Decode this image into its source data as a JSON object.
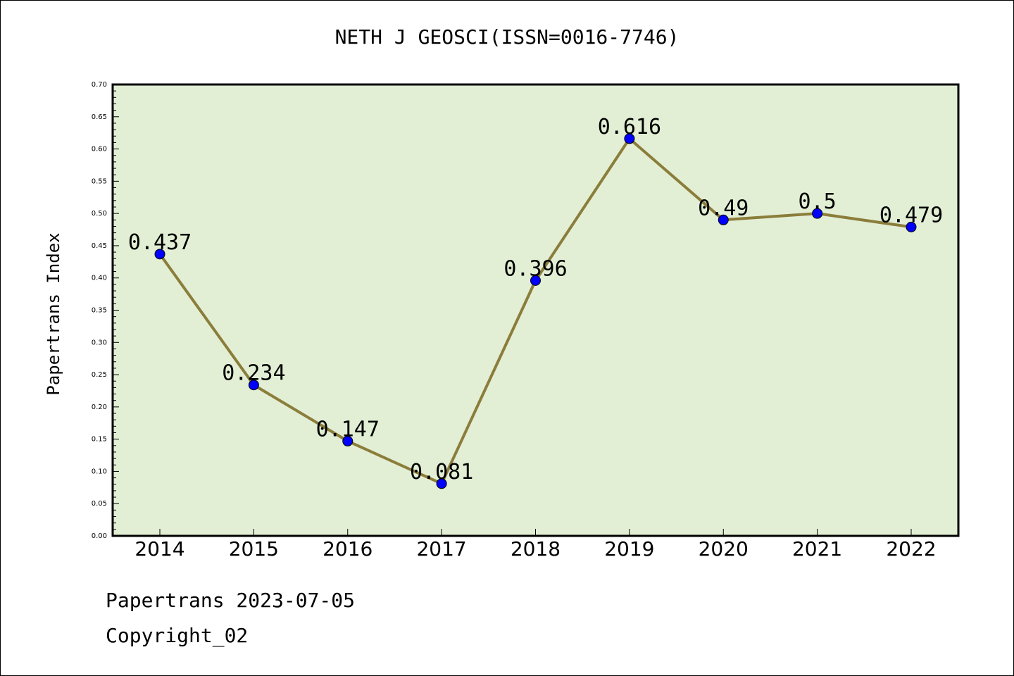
{
  "chart_data": {
    "type": "line",
    "title": "NETH J GEOSCI(ISSN=0016-7746)",
    "xlabel": "",
    "ylabel": "Papertrans Index",
    "categories": [
      "2014",
      "2015",
      "2016",
      "2017",
      "2018",
      "2019",
      "2020",
      "2021",
      "2022"
    ],
    "series": [
      {
        "values": [
          0.437,
          0.234,
          0.147,
          0.081,
          0.396,
          0.616,
          0.49,
          0.5,
          0.479
        ],
        "labels": [
          "0.437",
          "0.234",
          "0.147",
          "0.081",
          "0.396",
          "0.616",
          "0.49",
          "0.5",
          "0.479"
        ],
        "line_color": "#8b7d3a",
        "marker_color": "#0000ff"
      }
    ],
    "ylim": [
      0,
      0.7
    ],
    "yticks": [
      "0.00",
      "0.05",
      "0.10",
      "0.15",
      "0.20",
      "0.25",
      "0.30",
      "0.35",
      "0.40",
      "0.45",
      "0.50",
      "0.55",
      "0.60",
      "0.65",
      "0.70"
    ],
    "grid": false,
    "legend": "none",
    "plot_background": "#e2efd5"
  },
  "footer": {
    "date_line": "Papertrans 2023-07-05",
    "copyright_line": "Copyright_02"
  }
}
